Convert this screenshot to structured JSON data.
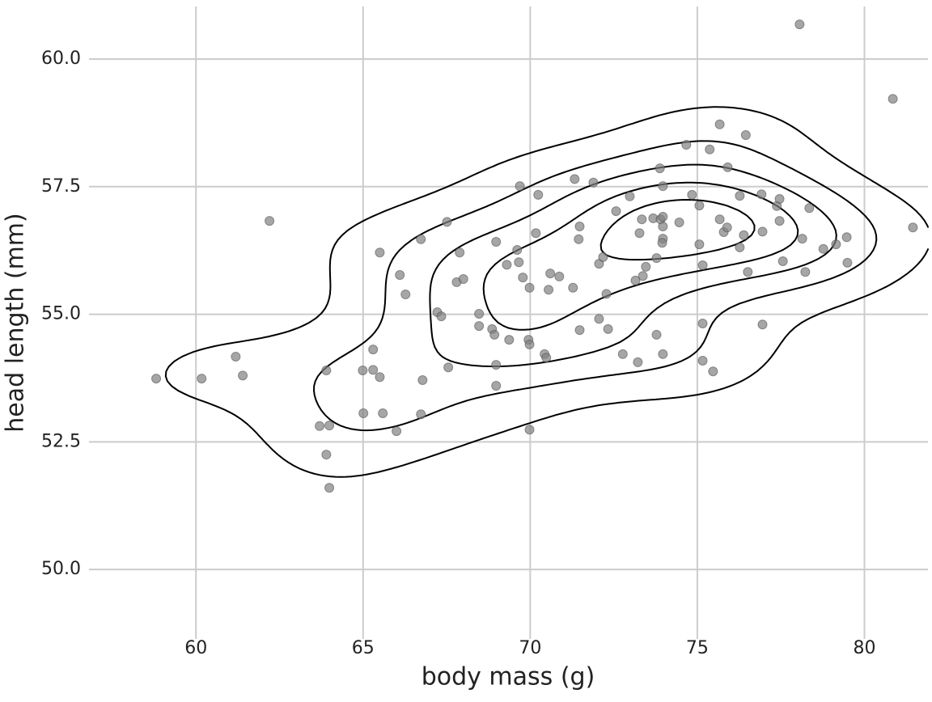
{
  "chart_data": {
    "type": "scatter",
    "x_label": "body mass (g)",
    "y_label": "head length (mm)",
    "xlim": [
      56.8,
      81.9
    ],
    "ylim": [
      48.64,
      61.03
    ],
    "xticks": [
      60,
      65,
      70,
      75,
      80
    ],
    "yticks": [
      {
        "value": 50,
        "label": "50.0"
      },
      {
        "value": 52.5,
        "label": "52.5"
      },
      {
        "value": 55,
        "label": "55.0"
      },
      {
        "value": 57.5,
        "label": "57.5"
      },
      {
        "value": 60,
        "label": "60.0"
      }
    ],
    "grid": true,
    "color": "#808080",
    "contour_color": "#000000",
    "density_contours": true,
    "x": [
      58.81,
      60.17,
      61.19,
      61.4,
      62.2,
      63.7,
      63.99,
      63.9,
      63.9,
      63.99,
      64.99,
      65.01,
      65.3,
      65.5,
      65.5,
      65.59,
      65.3,
      66.0,
      66.1,
      66.27,
      66.73,
      66.73,
      66.78,
      67.22,
      67.34,
      67.51,
      67.89,
      67.8,
      68.0,
      67.55,
      68.47,
      68.47,
      68.86,
      68.93,
      68.98,
      68.98,
      68.98,
      69.3,
      69.37,
      69.61,
      69.66,
      69.69,
      69.78,
      69.98,
      69.95,
      69.98,
      69.98,
      70.24,
      70.17,
      70.43,
      70.48,
      70.55,
      70.6,
      70.87,
      71.28,
      71.33,
      71.48,
      71.45,
      71.48,
      71.89,
      72.06,
      72.18,
      72.06,
      72.28,
      72.33,
      72.57,
      72.77,
      72.98,
      73.15,
      73.22,
      73.27,
      73.34,
      73.37,
      73.46,
      73.68,
      73.78,
      73.78,
      73.88,
      73.9,
      73.97,
      73.97,
      73.97,
      73.97,
      73.95,
      73.97,
      74.46,
      74.67,
      74.84,
      75.37,
      75.06,
      75.06,
      75.16,
      75.16,
      75.16,
      75.47,
      75.67,
      75.67,
      75.79,
      75.89,
      75.91,
      76.45,
      76.27,
      76.27,
      76.39,
      76.51,
      76.92,
      76.95,
      76.95,
      77.38,
      77.46,
      77.46,
      77.56,
      78.06,
      78.14,
      78.23,
      78.35,
      78.77,
      79.15,
      79.47,
      79.49,
      80.85,
      81.45
    ],
    "values": [
      53.74,
      53.74,
      54.17,
      53.8,
      56.83,
      52.81,
      52.82,
      53.9,
      52.25,
      51.6,
      53.9,
      53.06,
      54.31,
      56.21,
      53.77,
      53.06,
      53.91,
      52.71,
      55.77,
      55.39,
      56.47,
      53.04,
      53.71,
      55.04,
      54.96,
      56.81,
      56.21,
      55.63,
      55.69,
      53.96,
      55.01,
      54.77,
      54.71,
      54.6,
      54.01,
      53.6,
      56.42,
      55.97,
      54.5,
      56.26,
      56.02,
      57.51,
      55.72,
      55.52,
      54.5,
      54.41,
      52.74,
      57.34,
      56.59,
      54.22,
      54.15,
      55.48,
      55.8,
      55.74,
      55.52,
      57.65,
      56.72,
      56.47,
      54.69,
      57.58,
      55.99,
      56.12,
      54.91,
      55.4,
      54.71,
      57.02,
      54.22,
      57.31,
      55.66,
      54.06,
      56.59,
      56.86,
      55.75,
      55.93,
      56.88,
      56.1,
      54.6,
      57.86,
      56.86,
      57.51,
      56.91,
      56.72,
      56.48,
      56.4,
      54.22,
      56.8,
      58.32,
      57.34,
      58.23,
      57.13,
      56.37,
      55.96,
      54.82,
      54.09,
      53.88,
      58.72,
      56.86,
      56.61,
      56.7,
      57.88,
      58.51,
      57.32,
      56.31,
      56.55,
      55.83,
      57.35,
      56.62,
      54.8,
      57.12,
      57.26,
      56.83,
      56.04,
      60.68,
      56.48,
      55.83,
      57.08,
      56.28,
      56.37,
      56.51,
      56.01,
      59.22,
      56.7
    ]
  }
}
